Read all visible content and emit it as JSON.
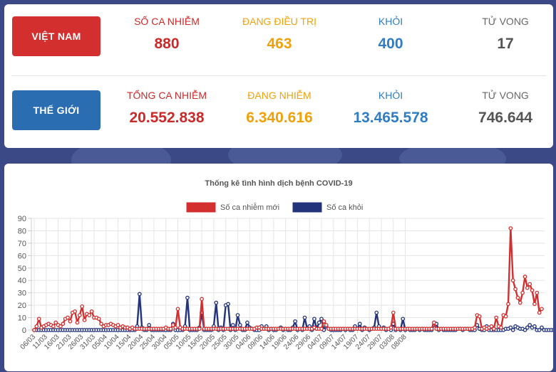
{
  "vietnam": {
    "badge": "VIỆT NAM",
    "badge_color": "#d32f2f",
    "stats": [
      {
        "label": "SỐ CA NHIỄM",
        "value": "880",
        "color": "#c92a2a"
      },
      {
        "label": "ĐANG ĐIỀU TRỊ",
        "value": "463",
        "color": "#f0a10a"
      },
      {
        "label": "KHỎI",
        "value": "400",
        "color": "#2f7dc3"
      },
      {
        "label": "TỬ VONG",
        "value": "17",
        "color": "#555555"
      }
    ]
  },
  "world": {
    "badge": "THẾ GIỚI",
    "badge_color": "#2a6db0",
    "stats": [
      {
        "label": "TỔNG CA NHIỄM",
        "value": "20.552.838",
        "color": "#c92a2a"
      },
      {
        "label": "ĐANG NHIỄM",
        "value": "6.340.616",
        "color": "#f0a10a"
      },
      {
        "label": "KHỎI",
        "value": "13.465.578",
        "color": "#2f7dc3"
      },
      {
        "label": "TỬ VONG",
        "value": "746.644",
        "color": "#555555"
      }
    ]
  },
  "chart_data": {
    "type": "line",
    "title": "Thống kê tình hình dịch bệnh COVID-19",
    "xlabel": "",
    "ylabel": "",
    "ylim": [
      0,
      90
    ],
    "yticks": [
      0,
      10,
      20,
      30,
      40,
      50,
      60,
      70,
      80,
      90
    ],
    "grid": true,
    "legend_position": "top",
    "x_labels": [
      "06/03",
      "11/03",
      "16/03",
      "21/03",
      "26/03",
      "31/03",
      "05/04",
      "10/04",
      "15/04",
      "20/04",
      "25/04",
      "30/04",
      "05/05",
      "10/05",
      "15/05",
      "20/05",
      "25/05",
      "30/05",
      "04/06",
      "09/06",
      "14/06",
      "19/06",
      "24/06",
      "29/06",
      "04/07",
      "09/07",
      "14/07",
      "19/07",
      "24/07",
      "29/07",
      "03/08",
      "08/08"
    ],
    "x_label_step": 5,
    "series": [
      {
        "name": "Số ca nhiễm mới",
        "color": "#d32f2f",
        "values": [
          0,
          3,
          9,
          2,
          3,
          4,
          5,
          4,
          3,
          6,
          4,
          3,
          5,
          9,
          10,
          7,
          14,
          15,
          6,
          12,
          19,
          8,
          13,
          12,
          15,
          10,
          10,
          9,
          5,
          3,
          4,
          4,
          5,
          4,
          3,
          4,
          2,
          3,
          2,
          2,
          1,
          2,
          1,
          1,
          1,
          1,
          1,
          1,
          1,
          1,
          1,
          1,
          1,
          1,
          1,
          2,
          1,
          1,
          4,
          2,
          17,
          2,
          1,
          1,
          1,
          1,
          1,
          1,
          1,
          1,
          25,
          1,
          1,
          1,
          1,
          1,
          1,
          1,
          1,
          1,
          1,
          1,
          1,
          1,
          1,
          1,
          1,
          1,
          1,
          1,
          1,
          1,
          1,
          2,
          2,
          1,
          1,
          1,
          1,
          1,
          1,
          1,
          1,
          1,
          1,
          1,
          1,
          1,
          1,
          1,
          1,
          1,
          1,
          1,
          1,
          1,
          1,
          2,
          1,
          1,
          1,
          7,
          4,
          1,
          1,
          1,
          1,
          1,
          1,
          1,
          1,
          1,
          1,
          1,
          1,
          1,
          1,
          1,
          1,
          1,
          1,
          1,
          1,
          1,
          1,
          1,
          1,
          1,
          1,
          2,
          14,
          1,
          1,
          1,
          1,
          1,
          1,
          1,
          1,
          1,
          1,
          1,
          1,
          1,
          1,
          1,
          1,
          6,
          1,
          1,
          1,
          1,
          1,
          1,
          1,
          1,
          1,
          1,
          1,
          1,
          1,
          1,
          1,
          1,
          2,
          12,
          11,
          1,
          2,
          1,
          2,
          3,
          1,
          10,
          3,
          2,
          12,
          11,
          21,
          82,
          40,
          33,
          26,
          22,
          30,
          43,
          34,
          37,
          32,
          21,
          30,
          14,
          17
        ]
      },
      {
        "name": "Số ca khỏi",
        "color": "#23347a",
        "values": [
          0,
          0,
          0,
          0,
          0,
          0,
          0,
          0,
          0,
          0,
          0,
          0,
          0,
          0,
          0,
          0,
          0,
          0,
          0,
          0,
          0,
          0,
          0,
          0,
          0,
          0,
          0,
          0,
          0,
          0,
          0,
          0,
          0,
          0,
          0,
          0,
          0,
          0,
          0,
          0,
          0,
          0,
          0,
          3,
          29,
          2,
          0,
          0,
          4,
          0,
          0,
          0,
          0,
          0,
          0,
          0,
          0,
          0,
          5,
          0,
          0,
          0,
          0,
          3,
          26,
          0,
          0,
          0,
          0,
          2,
          14,
          0,
          0,
          0,
          0,
          3,
          22,
          0,
          2,
          0,
          20,
          21,
          0,
          4,
          0,
          12,
          4,
          0,
          0,
          6,
          2,
          1,
          0,
          0,
          0,
          3,
          1,
          3,
          0,
          1,
          0,
          0,
          1,
          2,
          0,
          1,
          0,
          0,
          2,
          7,
          0,
          1,
          0,
          10,
          1,
          3,
          0,
          9,
          1,
          6,
          9,
          0,
          3,
          1,
          0,
          0,
          0,
          0,
          0,
          1,
          0,
          1,
          0,
          0,
          3,
          1,
          5,
          0,
          2,
          1,
          0,
          1,
          2,
          14,
          3,
          1,
          2,
          0,
          1,
          0,
          5,
          0,
          1,
          0,
          9,
          0,
          1,
          0,
          0,
          0,
          1,
          0,
          1,
          0,
          0,
          0,
          0,
          4,
          5,
          0,
          1,
          0,
          0,
          0,
          0,
          0,
          0,
          1,
          1,
          0,
          1,
          1,
          0,
          0,
          0,
          4,
          1,
          0,
          0,
          3,
          0,
          0,
          0,
          0,
          0,
          0,
          0,
          1,
          1,
          2,
          0,
          3,
          2,
          1,
          1,
          0,
          2,
          4,
          2,
          3,
          0,
          0,
          2,
          0,
          0,
          0,
          0,
          0,
          0,
          0,
          0,
          0,
          0,
          0,
          0,
          5,
          0,
          0,
          0,
          0,
          0,
          2,
          7,
          3,
          1,
          0,
          2,
          0,
          0,
          2,
          5,
          0,
          0,
          0,
          0,
          0,
          0,
          0,
          0,
          13,
          1,
          0,
          0,
          0,
          0,
          2,
          3
        ]
      }
    ]
  }
}
